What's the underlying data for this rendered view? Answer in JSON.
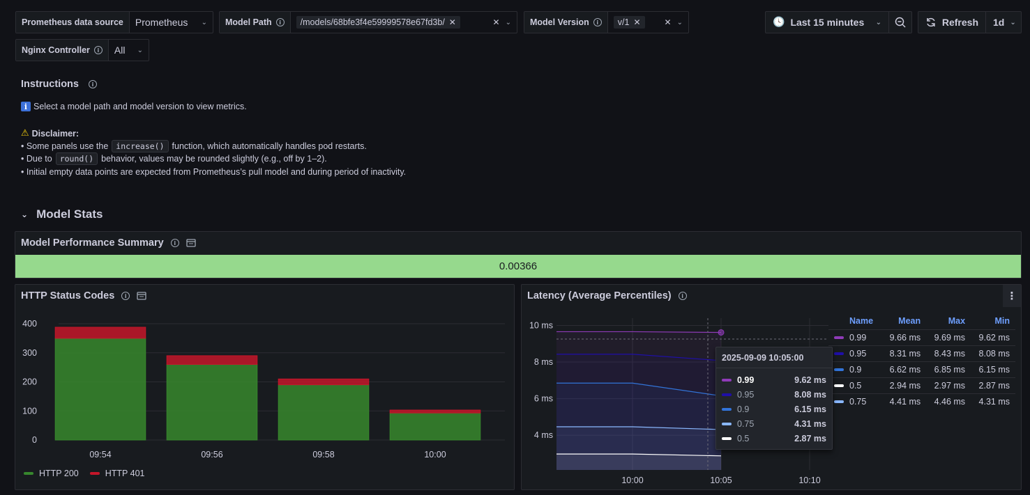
{
  "variables": {
    "datasource": {
      "label": "Prometheus data source",
      "value": "Prometheus"
    },
    "model_path": {
      "label": "Model Path",
      "value": "/models/68bfe3f4e59999578e67fd3b/"
    },
    "model_version": {
      "label": "Model Version",
      "value": "v/1"
    },
    "nginx": {
      "label": "Nginx Controller",
      "value": "All"
    }
  },
  "toolbar": {
    "time_range": "Last 15 minutes",
    "refresh_label": "Refresh",
    "refresh_interval": "1d"
  },
  "instructions": {
    "title": "Instructions",
    "line1": "Select a model path and model version to view metrics.",
    "disclaimer": "Disclaimer:",
    "b1_pre": "• Some panels use the",
    "b1_code": "increase()",
    "b1_post": "function, which automatically handles pod restarts.",
    "b2_pre": "• Due to",
    "b2_code": "round()",
    "b2_post": "behavior, values may be rounded slightly (e.g., off by 1–2).",
    "b3": "• Initial empty data points are expected from Prometheus’s pull model and during period of inactivity."
  },
  "row": {
    "title": "Model Stats"
  },
  "summary": {
    "title": "Model Performance Summary",
    "value": "0.00366",
    "color": "#96d98d"
  },
  "http_panel": {
    "title": "HTTP Status Codes",
    "chart_data": {
      "type": "bar",
      "stacked": true,
      "categories": [
        "09:54",
        "09:56",
        "09:58",
        "10:00"
      ],
      "series": [
        {
          "name": "HTTP 200",
          "color": "#37872d",
          "values": [
            350,
            260,
            190,
            93
          ]
        },
        {
          "name": "HTTP 401",
          "color": "#c4162a",
          "values": [
            38,
            30,
            20,
            10
          ]
        }
      ],
      "y_ticks": [
        "400",
        "300",
        "200",
        "100",
        "0"
      ],
      "ylim": [
        0,
        400
      ],
      "legend": "bottom-left"
    }
  },
  "latency_panel": {
    "title": "Latency (Average Percentiles)",
    "chart_data": {
      "type": "line",
      "x": [
        "09:56",
        "10:00",
        "10:05"
      ],
      "x_ticks": [
        "10:00",
        "10:05",
        "10:10"
      ],
      "y_ticks": [
        "10 ms",
        "8 ms",
        "6 ms",
        "4 ms"
      ],
      "ylim": [
        2.1,
        10.4
      ],
      "series": [
        {
          "name": "0.99",
          "color": "#8f3bb8",
          "values": [
            9.66,
            9.66,
            9.62
          ]
        },
        {
          "name": "0.95",
          "color": "#1f0fa8",
          "values": [
            8.43,
            8.43,
            8.08
          ]
        },
        {
          "name": "0.9",
          "color": "#3274d9",
          "values": [
            6.85,
            6.85,
            6.15
          ]
        },
        {
          "name": "0.75",
          "color": "#8ab8ff",
          "values": [
            4.46,
            4.46,
            4.31
          ]
        },
        {
          "name": "0.5",
          "color": "#ffffff",
          "values": [
            2.97,
            2.97,
            2.87
          ]
        }
      ]
    },
    "legend_table": {
      "headers": [
        "Name",
        "Mean",
        "Max",
        "Min"
      ],
      "rows": [
        {
          "name": "0.99",
          "color": "#8f3bb8",
          "mean": "9.66 ms",
          "max": "9.69 ms",
          "min": "9.62 ms"
        },
        {
          "name": "0.95",
          "color": "#1f0fa8",
          "mean": "8.31 ms",
          "max": "8.43 ms",
          "min": "8.08 ms"
        },
        {
          "name": "0.9",
          "color": "#3274d9",
          "mean": "6.62 ms",
          "max": "6.85 ms",
          "min": "6.15 ms"
        },
        {
          "name": "0.5",
          "color": "#ffffff",
          "mean": "2.94 ms",
          "max": "2.97 ms",
          "min": "2.87 ms"
        },
        {
          "name": "0.75",
          "color": "#8ab8ff",
          "mean": "4.41 ms",
          "max": "4.46 ms",
          "min": "4.31 ms"
        }
      ]
    },
    "tooltip": {
      "time": "2025-09-09 10:05:00",
      "rows": [
        {
          "name": "0.99",
          "color": "#8f3bb8",
          "value": "9.62 ms",
          "highlight": true
        },
        {
          "name": "0.95",
          "color": "#1f0fa8",
          "value": "8.08 ms"
        },
        {
          "name": "0.9",
          "color": "#3274d9",
          "value": "6.15 ms"
        },
        {
          "name": "0.75",
          "color": "#8ab8ff",
          "value": "4.31 ms"
        },
        {
          "name": "0.5",
          "color": "#ffffff",
          "value": "2.87 ms"
        }
      ]
    }
  }
}
